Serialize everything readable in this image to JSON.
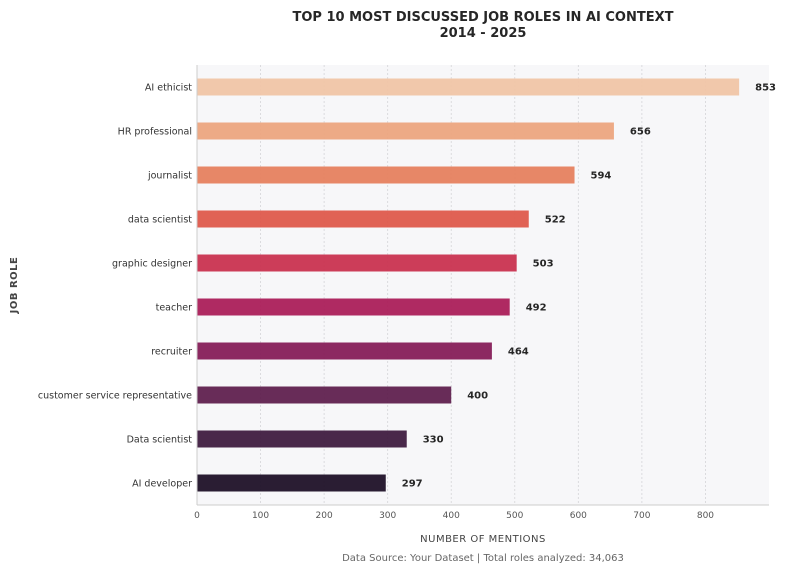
{
  "chart_data": {
    "type": "bar",
    "orientation": "horizontal",
    "title": "TOP 10 MOST DISCUSSED JOB ROLES IN AI CONTEXT",
    "subtitle": "2014 - 2025",
    "xlabel": "NUMBER OF MENTIONS",
    "ylabel": "JOB ROLE",
    "footnote": "Data Source: Your Dataset | Total roles analyzed: 34,063",
    "xlim": [
      0,
      900
    ],
    "xticks": [
      0,
      100,
      200,
      300,
      400,
      500,
      600,
      700,
      800
    ],
    "grid": "vertical dotted",
    "categories": [
      "AI ethicist",
      "HR professional",
      "journalist",
      "data scientist",
      "graphic designer",
      "teacher",
      "recruiter",
      "customer service representative",
      "Data scientist",
      "AI developer"
    ],
    "values": [
      853,
      656,
      594,
      522,
      503,
      492,
      464,
      400,
      330,
      297
    ],
    "colors": [
      "#f0c5a6",
      "#eca580",
      "#e6815f",
      "#de5a4c",
      "#c93350",
      "#ab1f5a",
      "#861e59",
      "#60214f",
      "#3f1c40",
      "#1f1128"
    ]
  }
}
